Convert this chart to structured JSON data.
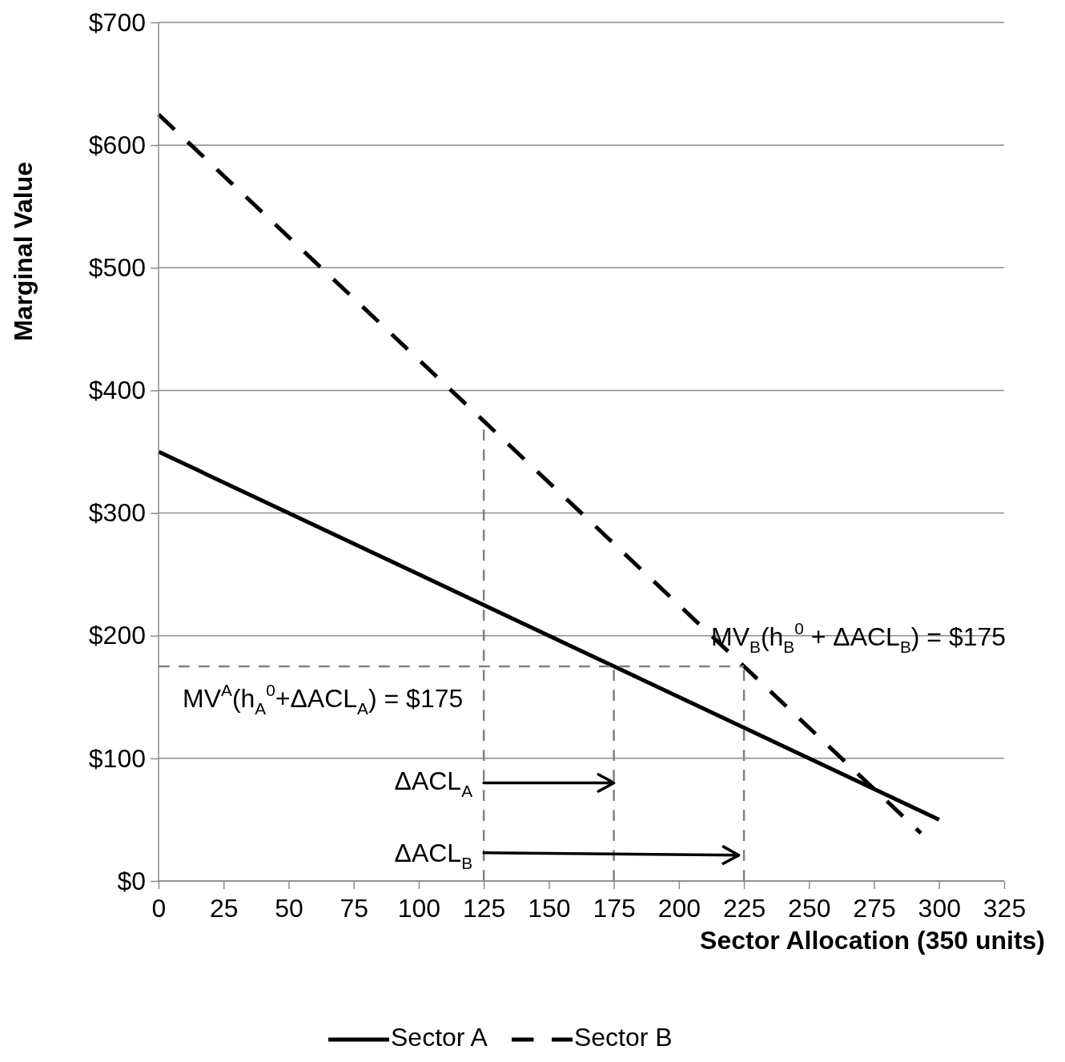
{
  "chart_data": {
    "type": "line",
    "xlabel": "Sector Allocation (350 units)",
    "ylabel": "Marginal Value",
    "xlim": [
      0,
      325
    ],
    "xticks": [
      0,
      25,
      50,
      75,
      100,
      125,
      150,
      175,
      200,
      225,
      250,
      275,
      300,
      325
    ],
    "ylim": [
      0,
      700
    ],
    "yticks": [
      {
        "value": 0,
        "label": "$0"
      },
      {
        "value": 100,
        "label": "$100"
      },
      {
        "value": 200,
        "label": "$200"
      },
      {
        "value": 300,
        "label": "$300"
      },
      {
        "value": 400,
        "label": "$400"
      },
      {
        "value": 500,
        "label": "$500"
      },
      {
        "value": 600,
        "label": "$600"
      },
      {
        "value": 700,
        "label": "$700"
      }
    ],
    "grid": "y",
    "legend": "bottom",
    "series": [
      {
        "name": "Sector A",
        "color": "#000000",
        "line_style": "solid",
        "x": [
          0,
          300
        ],
        "values": [
          350,
          50
        ]
      },
      {
        "name": "Sector B",
        "color": "#000000",
        "line_style": "dashed",
        "x": [
          0,
          293
        ],
        "values": [
          625,
          39
        ]
      },
      {
        "color": "#808080",
        "line_style": "dashed",
        "x": [
          125,
          125
        ],
        "values": [
          0,
          375
        ]
      },
      {
        "color": "#808080",
        "line_style": "dashed",
        "x": [
          175,
          175
        ],
        "values": [
          0,
          175
        ]
      },
      {
        "color": "#808080",
        "line_style": "dashed",
        "x": [
          225,
          225
        ],
        "values": [
          0,
          175
        ]
      },
      {
        "color": "#808080",
        "line_style": "dashed",
        "x": [
          0,
          225
        ],
        "values": [
          175,
          175
        ]
      },
      {
        "color": "#000000",
        "line_style": "solid",
        "x": [
          125,
          175
        ],
        "values": [
          80,
          80
        ]
      },
      {
        "color": "#000000",
        "line_style": "solid",
        "x": [
          125,
          223
        ],
        "values": [
          23,
          21
        ]
      }
    ],
    "annotations": [
      "MV$^{A}$(h$_{A}$$^{0}$+ΔACL$_{A}$) = $175",
      "MV$_{B}$(h$_{B}$$^{0}$ + ΔACL$_{B}$) = $175",
      "ΔACL$_{A}$",
      "ΔACL$_{B}$"
    ]
  }
}
